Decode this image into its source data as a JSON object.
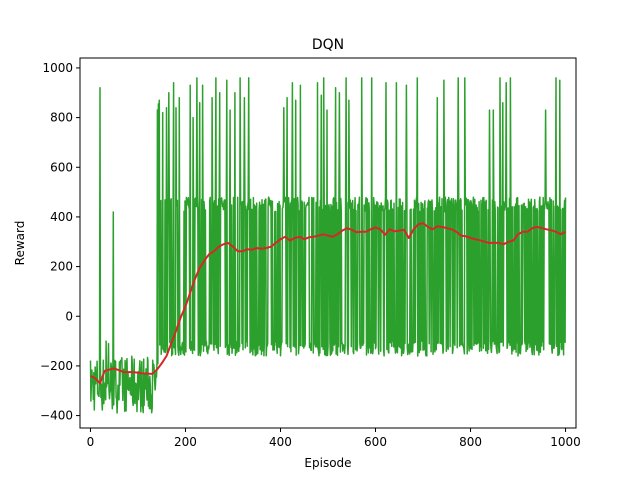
{
  "chart_data": {
    "type": "line",
    "title": "DQN",
    "xlabel": "Episode",
    "ylabel": "Reward",
    "xlim": [
      -22,
      1022
    ],
    "ylim": [
      -450,
      1040
    ],
    "xticks": [
      0,
      200,
      400,
      600,
      800,
      1000
    ],
    "yticks": [
      -400,
      -200,
      0,
      200,
      400,
      600,
      800,
      1000
    ],
    "grid": false,
    "legend": "none",
    "series": [
      {
        "color": "#2ca02c",
        "style": "raw",
        "segments": [
          {
            "x": [
              0,
              140
            ],
            "min": -390,
            "max": -160,
            "spikes": [
              [
                20,
                920
              ],
              [
                48,
                420
              ],
              [
                33,
                -100
              ],
              [
                38,
                -110
              ]
            ]
          },
          {
            "x": [
              140,
              145
            ],
            "min": -250,
            "max": 860,
            "spikes": []
          },
          {
            "x": [
              145,
              1000
            ],
            "min": -160,
            "max": 480,
            "spikes": [
              [
                145,
                870
              ],
              [
                152,
                820
              ],
              [
                160,
                840
              ],
              [
                165,
                900
              ],
              [
                175,
                940
              ],
              [
                180,
                840
              ],
              [
                187,
                880
              ],
              [
                210,
                930
              ],
              [
                216,
                800
              ],
              [
                224,
                960
              ],
              [
                230,
                860
              ],
              [
                236,
                930
              ],
              [
                256,
                880
              ],
              [
                264,
                960
              ],
              [
                272,
                900
              ],
              [
                287,
                950
              ],
              [
                294,
                830
              ],
              [
                304,
                900
              ],
              [
                315,
                960
              ],
              [
                324,
                880
              ],
              [
                333,
                960
              ],
              [
                407,
                840
              ],
              [
                414,
                880
              ],
              [
                425,
                940
              ],
              [
                432,
                870
              ],
              [
                442,
                930
              ],
              [
                478,
                940
              ],
              [
                486,
                890
              ],
              [
                491,
                960
              ],
              [
                498,
                830
              ],
              [
                516,
                920
              ],
              [
                524,
                900
              ],
              [
                538,
                960
              ],
              [
                544,
                870
              ],
              [
                571,
                960
              ],
              [
                592,
                960
              ],
              [
                622,
                940
              ],
              [
                644,
                940
              ],
              [
                665,
                930
              ],
              [
                688,
                960
              ],
              [
                730,
                880
              ],
              [
                744,
                950
              ],
              [
                774,
                960
              ],
              [
                788,
                960
              ],
              [
                840,
                830
              ],
              [
                848,
                830
              ],
              [
                862,
                960
              ],
              [
                868,
                860
              ],
              [
                875,
                940
              ],
              [
                884,
                960
              ],
              [
                958,
                830
              ],
              [
                980,
                960
              ],
              [
                988,
                950
              ]
            ]
          }
        ]
      },
      {
        "color": "#d62728",
        "style": "moving-average",
        "x": [
          0,
          10,
          20,
          30,
          50,
          70,
          90,
          110,
          130,
          140,
          150,
          160,
          170,
          180,
          190,
          200,
          210,
          220,
          230,
          240,
          250,
          260,
          270,
          280,
          290,
          300,
          310,
          320,
          330,
          340,
          350,
          360,
          370,
          380,
          390,
          400,
          410,
          420,
          430,
          440,
          450,
          460,
          470,
          480,
          490,
          500,
          510,
          520,
          530,
          540,
          550,
          560,
          570,
          580,
          590,
          600,
          610,
          620,
          630,
          640,
          650,
          660,
          670,
          680,
          690,
          700,
          710,
          720,
          730,
          740,
          750,
          760,
          770,
          780,
          790,
          800,
          810,
          820,
          830,
          840,
          850,
          860,
          870,
          880,
          890,
          900,
          910,
          920,
          930,
          940,
          950,
          960,
          970,
          980,
          990,
          1000
        ],
        "y": [
          -240,
          -250,
          -270,
          -220,
          -210,
          -225,
          -225,
          -230,
          -232,
          -215,
          -190,
          -160,
          -110,
          -60,
          -5,
          40,
          95,
          150,
          195,
          225,
          250,
          262,
          280,
          290,
          295,
          280,
          262,
          262,
          270,
          268,
          275,
          272,
          275,
          280,
          295,
          310,
          320,
          305,
          315,
          320,
          310,
          318,
          320,
          325,
          330,
          325,
          320,
          330,
          345,
          355,
          348,
          338,
          340,
          340,
          350,
          358,
          350,
          328,
          350,
          342,
          345,
          348,
          315,
          350,
          370,
          375,
          360,
          350,
          362,
          360,
          355,
          350,
          340,
          325,
          322,
          315,
          310,
          306,
          300,
          295,
          296,
          295,
          290,
          300,
          305,
          330,
          340,
          340,
          355,
          360,
          355,
          350,
          346,
          340,
          330,
          340
        ]
      }
    ]
  }
}
